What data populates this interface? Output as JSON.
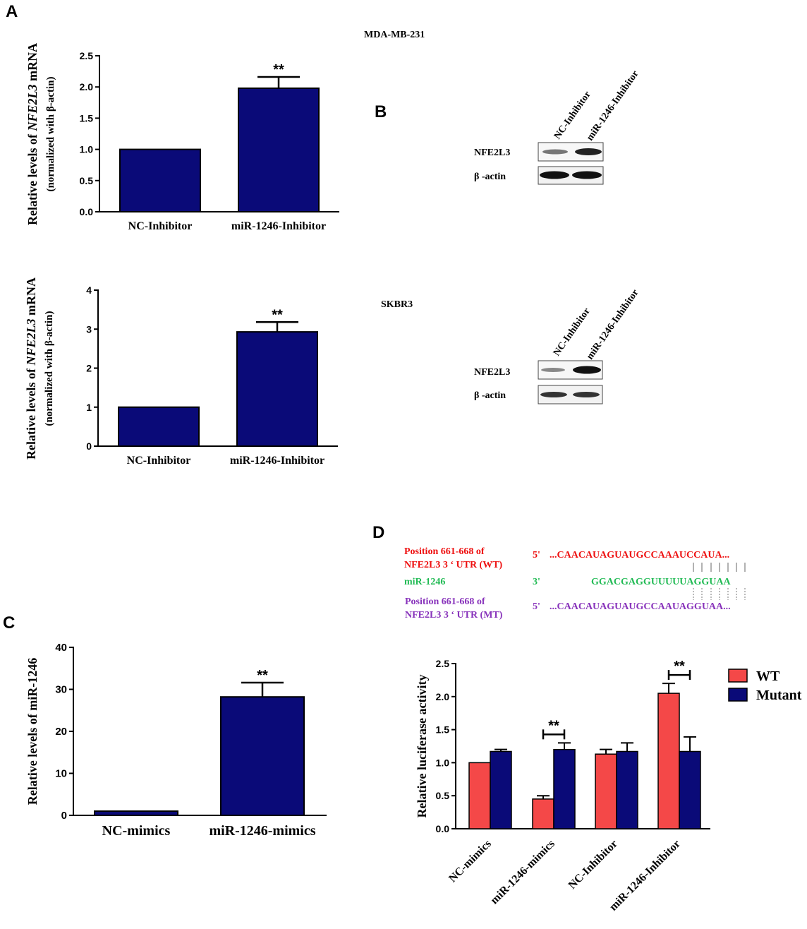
{
  "panels": {
    "a": "A",
    "b": "B",
    "c": "C",
    "d": "D"
  },
  "colors": {
    "bar_navy": "#0a0a78",
    "wt_red": "#f44848",
    "seq_red": "#ee1111",
    "seq_green": "#22bb55",
    "seq_purple": "#8833bb"
  },
  "blot": {
    "title_1": "MDA-MB-231",
    "title_2": "SKBR3",
    "lanes": [
      "NC-Inhibitor",
      "miR-1246-Inhibitor"
    ],
    "rows": [
      "NFE2L3",
      "β -actin"
    ]
  },
  "sequence": {
    "wt_label_1": "Position 661-668 of",
    "wt_label_2": "NFE2L3 3 ‘ UTR (WT)",
    "wt_end": "5'",
    "wt_seq": "...CAACAUAGUAUGCCAAAUCCAUA...",
    "mir_label": "miR-1246",
    "mir_end": "3'",
    "mir_seq": "GGACGAGGUUUUUAGGUAA",
    "mt_label_1": "Position 661-668 of",
    "mt_label_2": "NFE2L3 3 ‘ UTR (MT)",
    "mt_end": "5'",
    "mt_seq": "...CAACAUAGUAUGCCAAUAGGUAA..."
  },
  "chart_data": [
    {
      "id": "a1",
      "type": "bar",
      "title": "",
      "categories": [
        "NC-Inhibitor",
        "miR-1246-Inhibitor"
      ],
      "values": [
        1.0,
        1.98
      ],
      "errors": [
        0,
        0.18
      ],
      "ylabel_parts": [
        "Relative levels of ",
        "NFE2L3",
        " mRNA"
      ],
      "ylabel_sub": "(normalized with β-actin)",
      "ylim": [
        0,
        2.5
      ],
      "yticks": [
        "0.0",
        "0.5",
        "1.0",
        "1.5",
        "2.0",
        "2.5"
      ],
      "significance": [
        {
          "label": "**"
        }
      ]
    },
    {
      "id": "a2",
      "type": "bar",
      "title": "",
      "categories": [
        "NC-Inhibitor",
        "miR-1246-Inhibitor"
      ],
      "values": [
        1.0,
        2.93
      ],
      "errors": [
        0,
        0.25
      ],
      "ylabel_parts": [
        "Relative levels of ",
        "NFE2L3",
        " mRNA"
      ],
      "ylabel_sub": "(normalized with β-actin)",
      "ylim": [
        0,
        4
      ],
      "yticks": [
        "0",
        "1",
        "2",
        "3",
        "4"
      ],
      "significance": [
        {
          "label": "**"
        }
      ]
    },
    {
      "id": "c",
      "type": "bar",
      "title": "",
      "categories": [
        "NC-mimics",
        "miR-1246-mimics"
      ],
      "values": [
        1.0,
        28.2
      ],
      "errors": [
        0,
        3.4
      ],
      "ylabel": "Relative levels of miR-1246",
      "ylim": [
        0,
        40
      ],
      "yticks": [
        "0",
        "10",
        "20",
        "30",
        "40"
      ],
      "significance": [
        {
          "label": "**"
        }
      ]
    },
    {
      "id": "d",
      "type": "bar",
      "title": "",
      "categories": [
        "NC-mimics",
        "miR-1246-mimics",
        "NC-Inhibitor",
        "miR-1246-Inhibitor"
      ],
      "series": [
        {
          "name": "WT",
          "values": [
            1.0,
            0.45,
            1.13,
            2.05
          ],
          "errors": [
            0,
            0.05,
            0.07,
            0.15
          ]
        },
        {
          "name": "Mutant",
          "values": [
            1.17,
            1.2,
            1.17,
            1.17
          ],
          "errors": [
            0.03,
            0.1,
            0.13,
            0.22
          ]
        }
      ],
      "ylabel": "Relative luciferase activity",
      "ylim": [
        0,
        2.5
      ],
      "yticks": [
        "0.0",
        "0.5",
        "1.0",
        "1.5",
        "2.0",
        "2.5"
      ],
      "significance": [
        {
          "label": "**"
        },
        {
          "label": "**"
        }
      ]
    }
  ]
}
